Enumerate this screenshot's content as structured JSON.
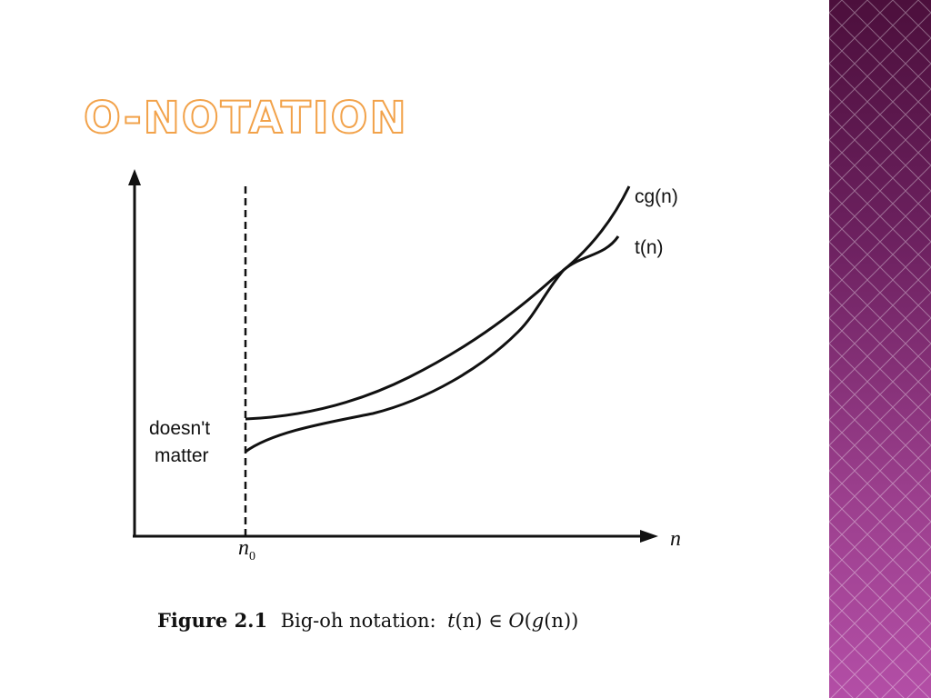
{
  "slide": {
    "title": "O-NOTATION",
    "accent_color": "#f2a24a",
    "sidebar_color": "#7e2a6e"
  },
  "diagram": {
    "curve_upper_label": "cg(n)",
    "curve_lower_label": "t(n)",
    "region_label_line1": "doesn't",
    "region_label_line2": "matter",
    "x_axis_label": "n",
    "threshold_label": "n",
    "threshold_subscript": "0"
  },
  "caption": {
    "figure_label": "Figure 2.1",
    "text": "Big-oh notation:",
    "formula_t": "t",
    "formula_n1": "(n)",
    "formula_in": " ∈ ",
    "formula_O": "O",
    "formula_paren_open": "(",
    "formula_g": "g",
    "formula_n2": "(n",
    "formula_close": "))"
  }
}
